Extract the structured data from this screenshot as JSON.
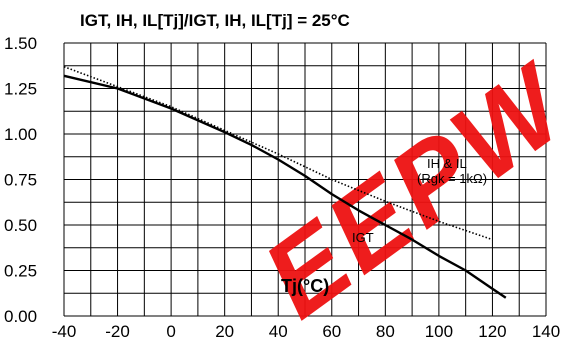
{
  "chart_data": {
    "type": "line",
    "title": "IGT, IH, IL[Tj]/IGT, IH, IL[Tj] = 25°C",
    "xlabel": "Tj(°C)",
    "ylabel": "",
    "xlim": [
      -40,
      140
    ],
    "ylim": [
      0,
      1.5
    ],
    "x_ticks": [
      -40,
      -20,
      0,
      20,
      40,
      60,
      80,
      100,
      120,
      140
    ],
    "x_tick_labels": [
      "-40",
      "-20",
      "0",
      "20",
      "40",
      "60",
      "80",
      "100",
      "120",
      "140"
    ],
    "y_ticks": [
      0,
      0.25,
      0.5,
      0.75,
      1.0,
      1.25,
      1.5
    ],
    "y_tick_labels": [
      "0.00",
      "0.25",
      "0.50",
      "0.75",
      "1.00",
      "1.25",
      "1.50"
    ],
    "grid": true,
    "series": [
      {
        "name": "IGT",
        "style": "solid",
        "color": "#000000",
        "x": [
          -40,
          -20,
          0,
          20,
          30,
          40,
          50,
          60,
          70,
          80,
          90,
          100,
          110,
          120,
          125
        ],
        "y": [
          1.32,
          1.25,
          1.14,
          1.01,
          0.94,
          0.86,
          0.77,
          0.67,
          0.58,
          0.5,
          0.42,
          0.33,
          0.25,
          0.15,
          0.1
        ]
      },
      {
        "name": "IH & IL",
        "style": "dotted",
        "color": "#000000",
        "x": [
          -40,
          -20,
          0,
          20,
          40,
          60,
          80,
          100,
          120
        ],
        "y": [
          1.37,
          1.26,
          1.15,
          1.02,
          0.89,
          0.75,
          0.63,
          0.52,
          0.42
        ]
      }
    ],
    "annotations": {
      "ih_il": "IH & IL",
      "rgk": "(Rgk = 1kΩ)",
      "igt": "IGT"
    },
    "watermark": "EEPW",
    "watermark_color": "#ee1111"
  }
}
